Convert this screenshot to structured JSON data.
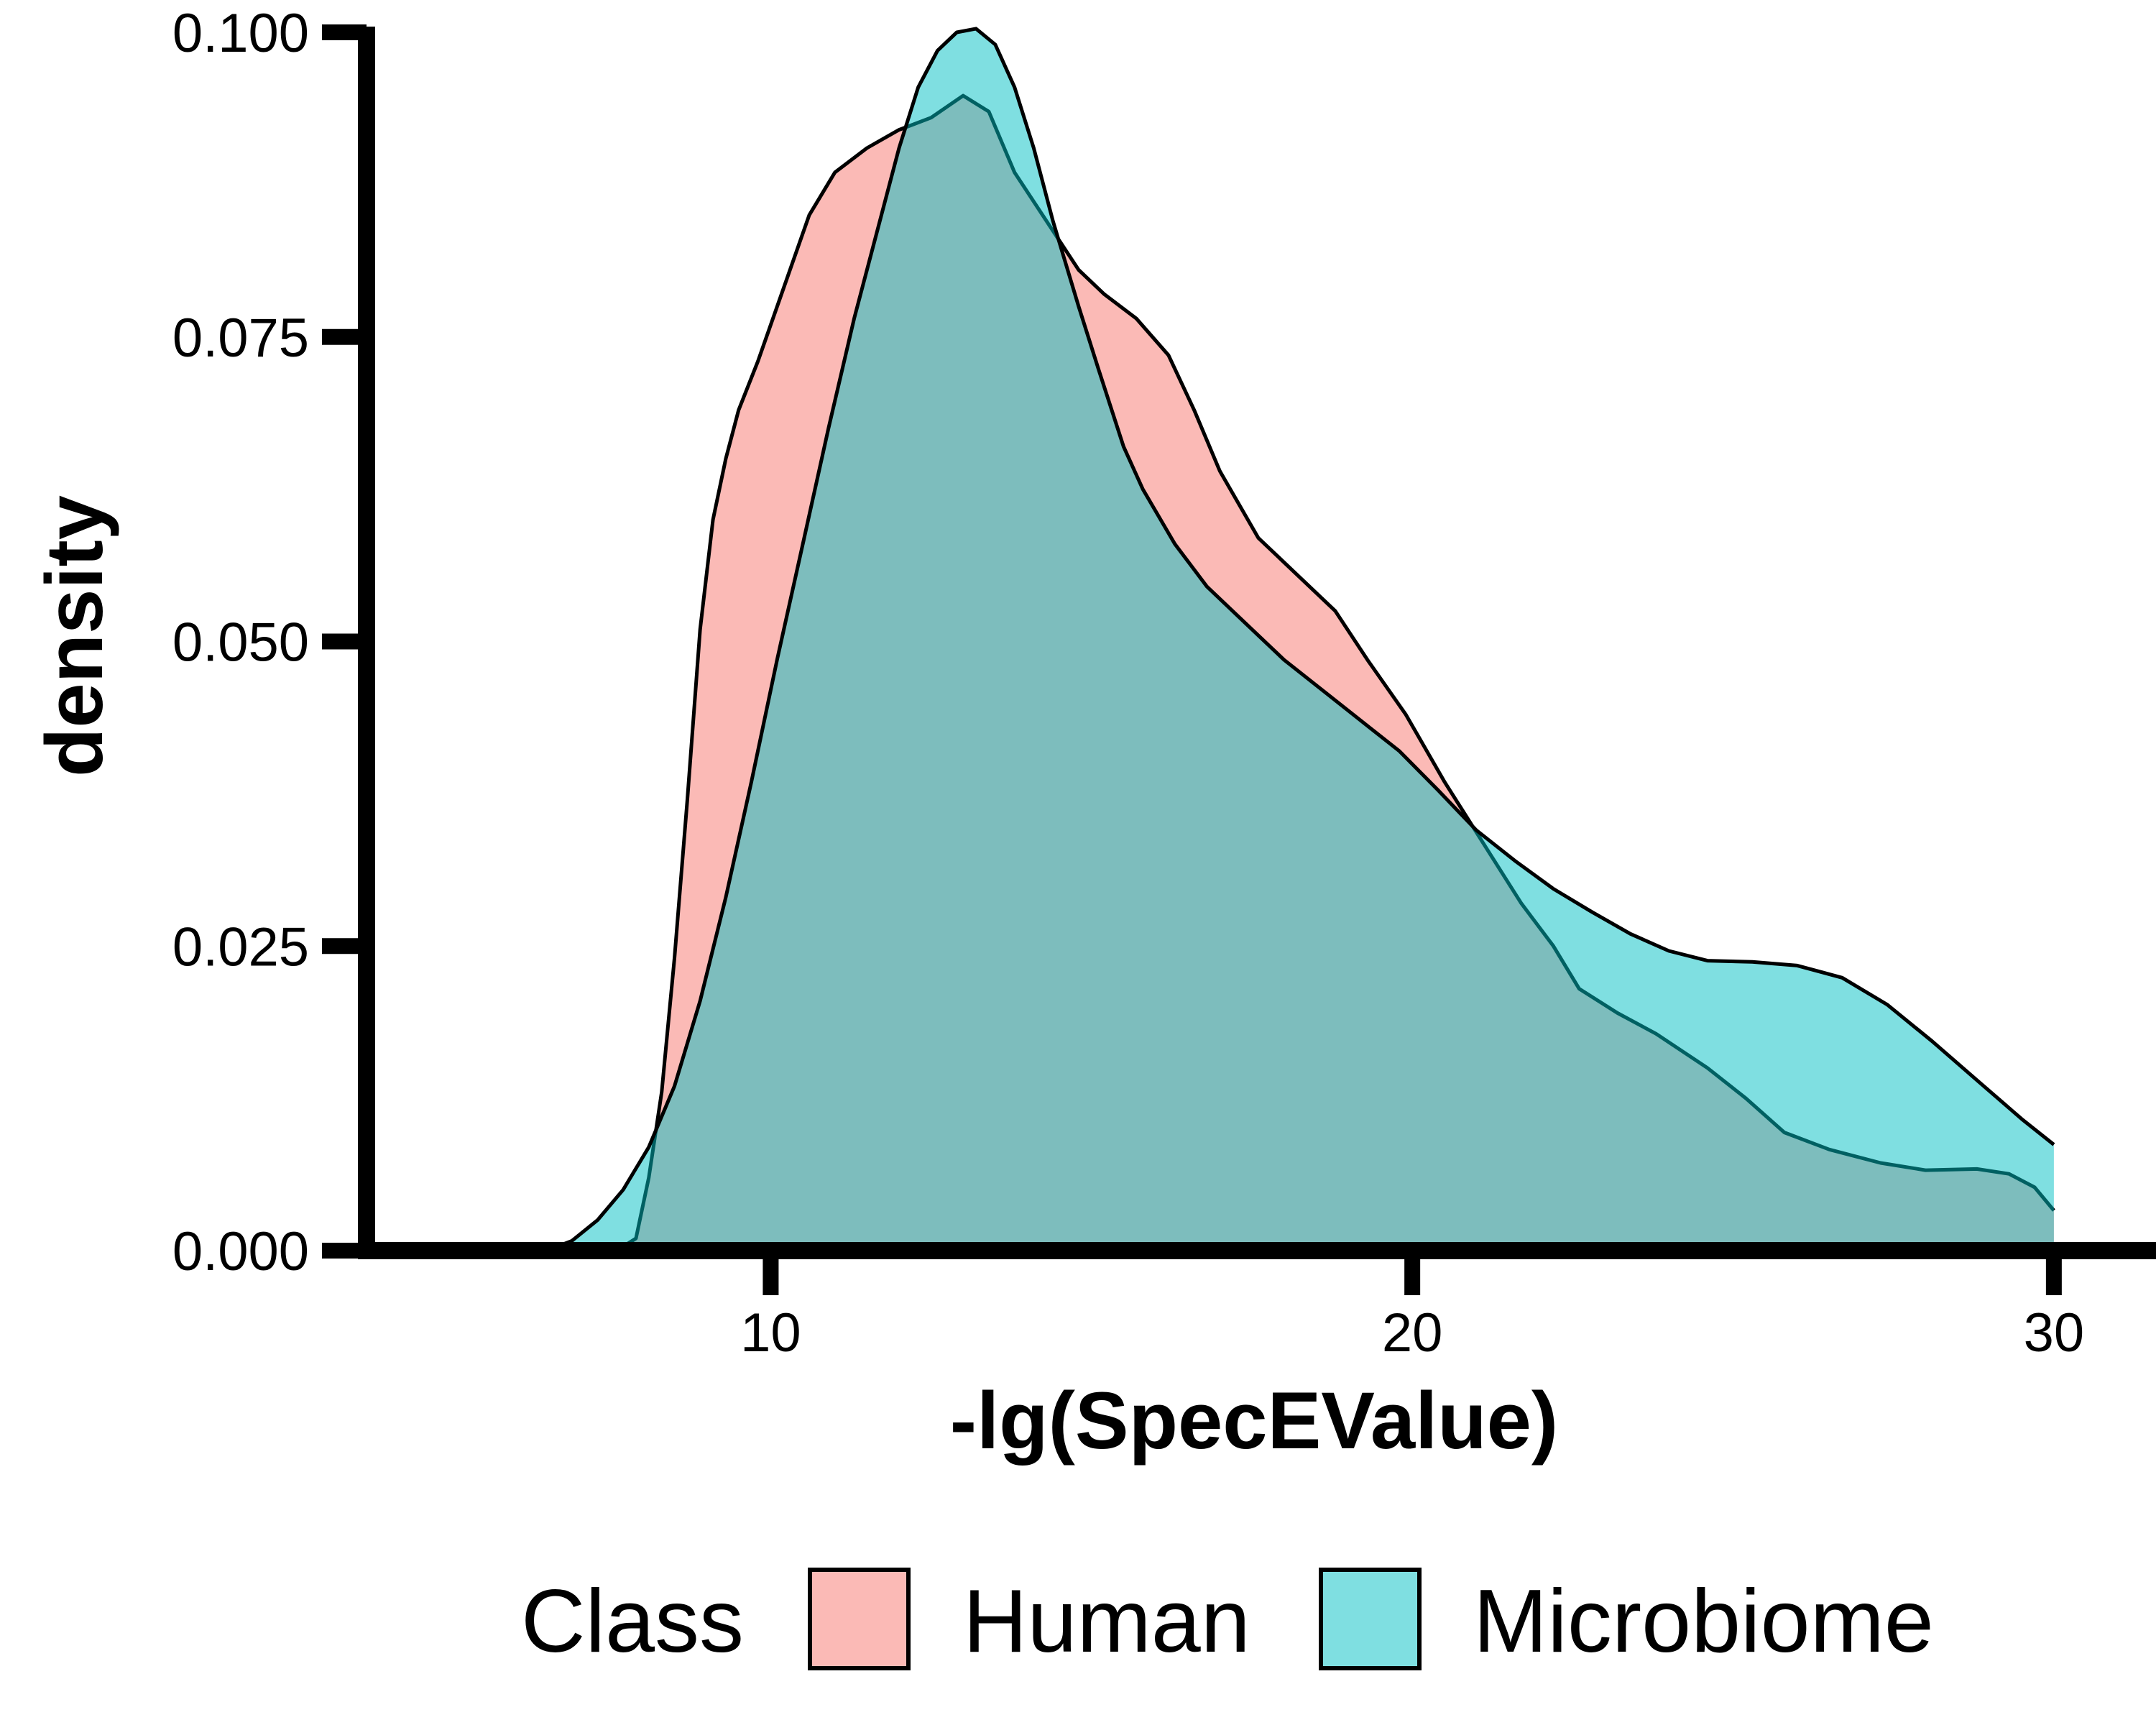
{
  "chart_data": {
    "type": "area",
    "xlabel": "-lg(SpecEValue)",
    "ylabel": "density",
    "xlim": [
      3.7,
      31.2
    ],
    "ylim": [
      0,
      0.1
    ],
    "x_ticks": [
      10,
      20,
      30
    ],
    "y_ticks": [
      0.0,
      0.025,
      0.05,
      0.075,
      0.1
    ],
    "x_tick_labels": [
      "10",
      "20",
      "30"
    ],
    "y_tick_labels": [
      "0.000",
      "0.025",
      "0.050",
      "0.075",
      "0.100"
    ],
    "grid": false,
    "legend": {
      "title": "Class",
      "position": "bottom",
      "entries": [
        "Human",
        "Microbiome"
      ]
    },
    "series": [
      {
        "name": "Human",
        "color": "#F8766D",
        "points": [
          [
            7.6,
            0.0
          ],
          [
            7.9,
            0.001
          ],
          [
            8.1,
            0.006
          ],
          [
            8.3,
            0.013
          ],
          [
            8.5,
            0.024
          ],
          [
            8.7,
            0.037
          ],
          [
            8.9,
            0.051
          ],
          [
            9.1,
            0.06
          ],
          [
            9.3,
            0.065
          ],
          [
            9.5,
            0.069
          ],
          [
            9.8,
            0.073
          ],
          [
            10.2,
            0.079
          ],
          [
            10.6,
            0.085
          ],
          [
            11.0,
            0.0885
          ],
          [
            11.5,
            0.0905
          ],
          [
            12.0,
            0.092
          ],
          [
            12.5,
            0.093
          ],
          [
            13.0,
            0.0948
          ],
          [
            13.4,
            0.0935
          ],
          [
            13.8,
            0.0885
          ],
          [
            14.3,
            0.0845
          ],
          [
            14.8,
            0.0805
          ],
          [
            15.2,
            0.0785
          ],
          [
            15.7,
            0.0765
          ],
          [
            16.2,
            0.0735
          ],
          [
            16.6,
            0.069
          ],
          [
            17.0,
            0.064
          ],
          [
            17.6,
            0.0585
          ],
          [
            18.2,
            0.0555
          ],
          [
            18.8,
            0.0525
          ],
          [
            19.3,
            0.0485
          ],
          [
            19.9,
            0.044
          ],
          [
            20.5,
            0.0385
          ],
          [
            21.1,
            0.0335
          ],
          [
            21.7,
            0.0285
          ],
          [
            22.2,
            0.025
          ],
          [
            22.6,
            0.0215
          ],
          [
            23.2,
            0.0195
          ],
          [
            23.8,
            0.0178
          ],
          [
            24.6,
            0.015
          ],
          [
            25.2,
            0.0125
          ],
          [
            25.8,
            0.0097
          ],
          [
            26.5,
            0.0083
          ],
          [
            27.3,
            0.0072
          ],
          [
            28.0,
            0.0066
          ],
          [
            28.8,
            0.0067
          ],
          [
            29.3,
            0.0063
          ],
          [
            29.7,
            0.0052
          ],
          [
            30.0,
            0.0033
          ]
        ]
      },
      {
        "name": "Microbiome",
        "color": "#00BFC4",
        "points": [
          [
            6.5,
            0.0
          ],
          [
            6.9,
            0.0008
          ],
          [
            7.3,
            0.0025
          ],
          [
            7.7,
            0.005
          ],
          [
            8.1,
            0.0085
          ],
          [
            8.5,
            0.0135
          ],
          [
            8.9,
            0.0205
          ],
          [
            9.3,
            0.029
          ],
          [
            9.7,
            0.0385
          ],
          [
            10.1,
            0.0485
          ],
          [
            10.5,
            0.058
          ],
          [
            10.9,
            0.0675
          ],
          [
            11.3,
            0.0765
          ],
          [
            11.7,
            0.0845
          ],
          [
            12.0,
            0.0905
          ],
          [
            12.3,
            0.0955
          ],
          [
            12.6,
            0.0985
          ],
          [
            12.9,
            0.1
          ],
          [
            13.2,
            0.1003
          ],
          [
            13.5,
            0.099
          ],
          [
            13.8,
            0.0955
          ],
          [
            14.1,
            0.0905
          ],
          [
            14.4,
            0.0845
          ],
          [
            14.8,
            0.0775
          ],
          [
            15.1,
            0.0725
          ],
          [
            15.5,
            0.066
          ],
          [
            15.8,
            0.0625
          ],
          [
            16.3,
            0.058
          ],
          [
            16.8,
            0.0545
          ],
          [
            17.4,
            0.0515
          ],
          [
            18.0,
            0.0485
          ],
          [
            18.6,
            0.046
          ],
          [
            19.2,
            0.0435
          ],
          [
            19.8,
            0.041
          ],
          [
            20.4,
            0.0378
          ],
          [
            21.0,
            0.0345
          ],
          [
            21.6,
            0.032
          ],
          [
            22.2,
            0.0297
          ],
          [
            22.8,
            0.0278
          ],
          [
            23.4,
            0.026
          ],
          [
            24.0,
            0.0246
          ],
          [
            24.6,
            0.0238
          ],
          [
            25.3,
            0.0237
          ],
          [
            26.0,
            0.0234
          ],
          [
            26.7,
            0.0224
          ],
          [
            27.4,
            0.0202
          ],
          [
            28.1,
            0.0172
          ],
          [
            28.8,
            0.014
          ],
          [
            29.5,
            0.0108
          ],
          [
            30.0,
            0.0087
          ]
        ]
      }
    ]
  }
}
